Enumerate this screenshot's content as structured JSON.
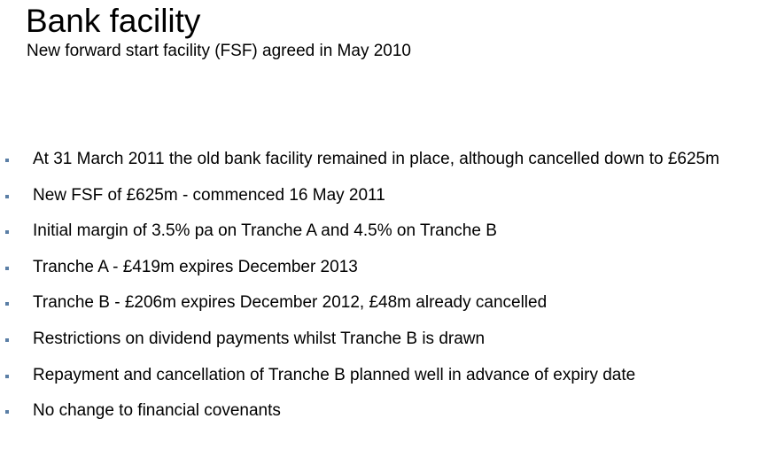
{
  "slide": {
    "title": "Bank facility",
    "subtitle": "New forward start facility (FSF) agreed in May 2010",
    "bullet_color": "#5b7fa6",
    "bullets": [
      "At 31 March 2011 the old bank facility remained in place, although cancelled down to £625m",
      "New FSF of £625m - commenced 16 May 2011",
      "Initial margin of 3.5% pa on Tranche A and 4.5% on Tranche B",
      "Tranche A -  £419m expires December 2013",
      "Tranche B -  £206m expires December 2012, £48m already cancelled",
      "Restrictions on dividend payments whilst Tranche B is drawn",
      "Repayment and cancellation of Tranche B planned well in advance of expiry date",
      "No change to financial covenants"
    ]
  }
}
